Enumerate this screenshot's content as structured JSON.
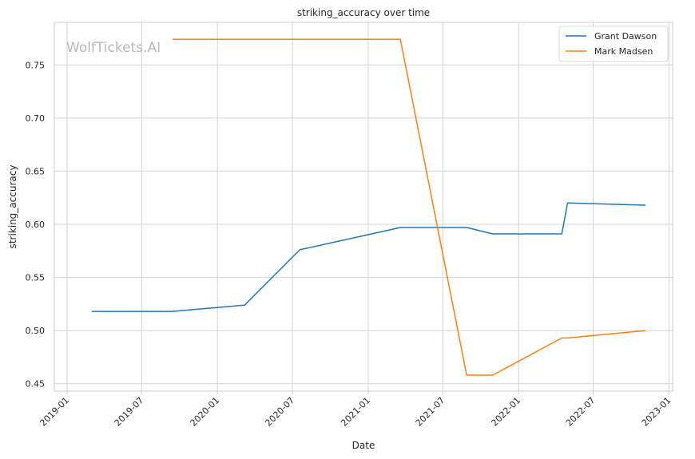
{
  "chart_data": {
    "type": "line",
    "title": "striking_accuracy over time",
    "xlabel": "Date",
    "ylabel": "striking_accuracy",
    "watermark": "WolfTickets.AI",
    "xlim": [
      "2018-12-01",
      "2023-01-10"
    ],
    "ylim": [
      0.443,
      0.79
    ],
    "x_ticks": [
      "2019-01-01",
      "2019-07-01",
      "2020-01-01",
      "2020-07-01",
      "2021-01-01",
      "2021-07-01",
      "2022-01-01",
      "2022-07-01",
      "2023-01-01"
    ],
    "x_tick_labels": [
      "2019-01",
      "2019-07",
      "2020-01",
      "2020-07",
      "2021-01",
      "2021-07",
      "2022-01",
      "2022-07",
      "2023-01"
    ],
    "y_ticks": [
      0.45,
      0.5,
      0.55,
      0.6,
      0.65,
      0.7,
      0.75
    ],
    "y_tick_labels": [
      "0.45",
      "0.50",
      "0.55",
      "0.60",
      "0.65",
      "0.70",
      "0.75"
    ],
    "grid": true,
    "legend_position": "top-right",
    "series": [
      {
        "name": "Grant Dawson",
        "color": "#1f77b4",
        "points": [
          [
            "2019-03-02",
            0.518
          ],
          [
            "2019-09-14",
            0.518
          ],
          [
            "2020-03-07",
            0.524
          ],
          [
            "2020-07-19",
            0.576
          ],
          [
            "2021-03-20",
            0.597
          ],
          [
            "2021-08-28",
            0.597
          ],
          [
            "2021-10-30",
            0.591
          ],
          [
            "2022-04-16",
            0.591
          ],
          [
            "2022-04-30",
            0.62
          ],
          [
            "2022-11-05",
            0.618
          ]
        ]
      },
      {
        "name": "Mark Madsen",
        "color": "#ff7f0e",
        "points": [
          [
            "2019-09-14",
            0.774
          ],
          [
            "2021-03-20",
            0.774
          ],
          [
            "2021-08-28",
            0.458
          ],
          [
            "2021-10-30",
            0.458
          ],
          [
            "2022-04-16",
            0.493
          ],
          [
            "2022-04-30",
            0.493
          ],
          [
            "2022-11-05",
            0.5
          ]
        ]
      }
    ]
  }
}
